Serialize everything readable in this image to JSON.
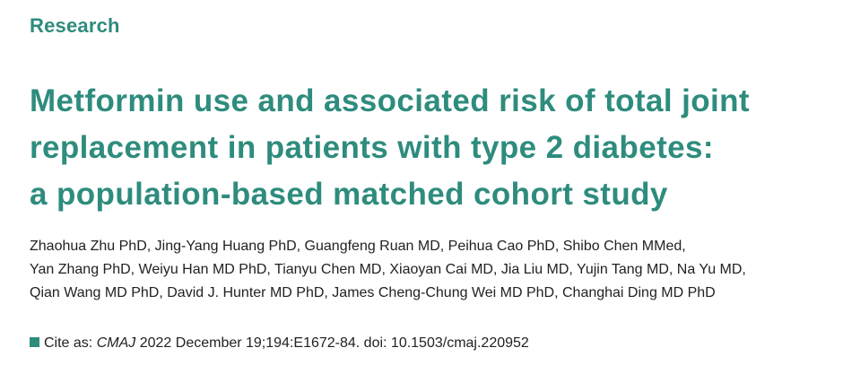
{
  "section_label": "Research",
  "title": {
    "line1": "Metformin use and associated risk of total joint",
    "line2": "replacement in patients with type 2 diabetes:",
    "line3": "a population-based matched cohort study"
  },
  "authors": {
    "line1": "Zhaohua Zhu PhD, Jing-Yang Huang PhD, Guangfeng Ruan MD, Peihua Cao PhD, Shibo Chen MMed,",
    "line2": "Yan Zhang PhD, Weiyu Han MD PhD, Tianyu Chen MD, Xiaoyan Cai MD, Jia Liu MD, Yujin Tang MD, Na Yu MD,",
    "line3": "Qian Wang MD PhD, David J. Hunter MD PhD, James Cheng-Chung Wei MD PhD, Changhai Ding MD PhD"
  },
  "citation": {
    "prefix": "Cite as:",
    "journal": "CMAJ",
    "details": "2022 December 19;194:E1672-84. doi: 10.1503/cmaj.220952"
  },
  "colors": {
    "accent": "#2e8c7d",
    "text": "#222222"
  }
}
